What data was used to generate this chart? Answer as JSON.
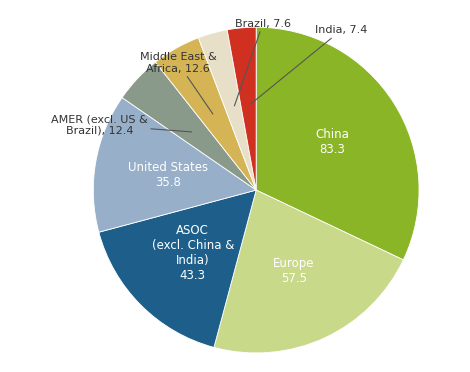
{
  "slices": [
    {
      "label": "China",
      "value": 83.3,
      "color": "#8ab526",
      "inside": true,
      "text": "China\n83.3"
    },
    {
      "label": "Europe",
      "value": 57.5,
      "color": "#c8d98a",
      "inside": true,
      "text": "Europe\n57.5"
    },
    {
      "label": "ASOC\n(excl. China &\nIndia)",
      "value": 43.3,
      "color": "#1d5f8a",
      "inside": true,
      "text": "ASOC\n(excl. China &\nIndia)\n43.3"
    },
    {
      "label": "United States",
      "value": 35.8,
      "color": "#97afc8",
      "inside": true,
      "text": "United States\n35.8"
    },
    {
      "label": "AMER",
      "value": 12.4,
      "color": "#8a9a8a",
      "inside": false,
      "text": "AMER (excl. US &\nBrazil), 12.4"
    },
    {
      "label": "Middle East & Africa",
      "value": 12.6,
      "color": "#d4b455",
      "inside": false,
      "text": "Middle East &\nAfrica, 12.6"
    },
    {
      "label": "Brazil",
      "value": 7.6,
      "color": "#e8dfc8",
      "inside": false,
      "text": "Brazil, 7.6"
    },
    {
      "label": "India",
      "value": 7.4,
      "color": "#d03020",
      "inside": false,
      "text": "India, 7.4"
    }
  ],
  "startangle": 90,
  "background_color": "#ffffff",
  "text_color_inside": "#ffffff",
  "text_color_outside": "#333333",
  "fontsize_inside": 8.5,
  "fontsize_outside": 8.0
}
